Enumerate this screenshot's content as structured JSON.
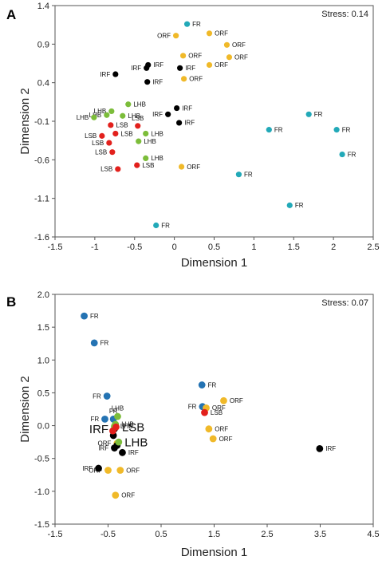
{
  "colors": {
    "FR_A": "#22a9b8",
    "FR_B": "#2473b3",
    "ORF": "#f0b929",
    "IRF": "#000000",
    "LHB": "#7cbd3a",
    "LSB": "#e2201c"
  },
  "chart_data": [
    {
      "type": "scatter",
      "panel_label": "A",
      "annotation": "Stress: 0.14",
      "xlabel": "Dimension 1",
      "ylabel": "Dimension 2",
      "xlim": [
        -1.5,
        2.5
      ],
      "ylim": [
        -1.6,
        1.4
      ],
      "xticks": [
        -1.5,
        -1,
        -0.5,
        0,
        0.5,
        1,
        1.5,
        2,
        2.5
      ],
      "xtick_labels": [
        "-1.5",
        "-1",
        "-0.5",
        "0",
        "0.5",
        "1",
        "1.5",
        "2",
        "2.5"
      ],
      "yticks": [
        1.4,
        0.9,
        0.4,
        -0.1,
        -0.6,
        -1.1,
        -1.6
      ],
      "ytick_labels": [
        "1.4",
        "0.9",
        "0.4",
        "-0.1",
        "-0.6",
        "-1.1",
        "-1.6"
      ],
      "series": [
        {
          "name": "FR",
          "color_key": "FR_A",
          "points": [
            {
              "x": 0.16,
              "y": 1.16,
              "label": "FR",
              "pos": "r"
            },
            {
              "x": 1.69,
              "y": -0.01,
              "label": "FR",
              "pos": "r"
            },
            {
              "x": 1.19,
              "y": -0.21,
              "label": "FR",
              "pos": "r"
            },
            {
              "x": 2.04,
              "y": -0.21,
              "label": "FR",
              "pos": "r"
            },
            {
              "x": 2.11,
              "y": -0.53,
              "label": "FR",
              "pos": "r"
            },
            {
              "x": 0.81,
              "y": -0.79,
              "label": "FR",
              "pos": "r"
            },
            {
              "x": 1.45,
              "y": -1.19,
              "label": "FR",
              "pos": "r"
            },
            {
              "x": -0.23,
              "y": -1.45,
              "label": "FR",
              "pos": "r"
            }
          ]
        },
        {
          "name": "ORF",
          "color_key": "ORF",
          "points": [
            {
              "x": 0.02,
              "y": 1.01,
              "label": "ORF",
              "pos": "l"
            },
            {
              "x": 0.44,
              "y": 1.04,
              "label": "ORF",
              "pos": "r"
            },
            {
              "x": 0.66,
              "y": 0.89,
              "label": "ORF",
              "pos": "r"
            },
            {
              "x": 0.11,
              "y": 0.75,
              "label": "ORF",
              "pos": "r"
            },
            {
              "x": 0.69,
              "y": 0.73,
              "label": "ORF",
              "pos": "r"
            },
            {
              "x": 0.44,
              "y": 0.63,
              "label": "ORF",
              "pos": "r"
            },
            {
              "x": 0.12,
              "y": 0.45,
              "label": "ORF",
              "pos": "r"
            },
            {
              "x": 0.09,
              "y": -0.69,
              "label": "ORF",
              "pos": "r"
            }
          ]
        },
        {
          "name": "IRF",
          "color_key": "IRF",
          "points": [
            {
              "x": -0.33,
              "y": 0.63,
              "label": "IRF",
              "pos": "r"
            },
            {
              "x": -0.35,
              "y": 0.59,
              "label": "IRF",
              "pos": "l"
            },
            {
              "x": 0.07,
              "y": 0.59,
              "label": "IRF",
              "pos": "r"
            },
            {
              "x": -0.74,
              "y": 0.51,
              "label": "IRF",
              "pos": "l"
            },
            {
              "x": -0.34,
              "y": 0.41,
              "label": "IRF",
              "pos": "r"
            },
            {
              "x": 0.03,
              "y": 0.07,
              "label": "IRF",
              "pos": "r"
            },
            {
              "x": -0.08,
              "y": -0.01,
              "label": "IRF",
              "pos": "l"
            },
            {
              "x": 0.06,
              "y": -0.12,
              "label": "IRF",
              "pos": "r"
            }
          ]
        },
        {
          "name": "LHB",
          "color_key": "LHB",
          "points": [
            {
              "x": -0.58,
              "y": 0.12,
              "label": "LHB",
              "pos": "r"
            },
            {
              "x": -0.79,
              "y": 0.03,
              "label": "LHB",
              "pos": "l"
            },
            {
              "x": -0.85,
              "y": -0.02,
              "label": "LHB",
              "pos": "l"
            },
            {
              "x": -0.65,
              "y": -0.03,
              "label": "LHB",
              "pos": "r"
            },
            {
              "x": -1.01,
              "y": -0.05,
              "label": "LHB",
              "pos": "l"
            },
            {
              "x": -0.36,
              "y": -0.26,
              "label": "LHB",
              "pos": "r"
            },
            {
              "x": -0.45,
              "y": -0.36,
              "label": "LHB",
              "pos": "r"
            },
            {
              "x": -0.36,
              "y": -0.58,
              "label": "LHB",
              "pos": "r"
            }
          ]
        },
        {
          "name": "LSB",
          "color_key": "LSB",
          "points": [
            {
              "x": -0.8,
              "y": -0.15,
              "label": "LSB",
              "pos": "r"
            },
            {
              "x": -0.46,
              "y": -0.16,
              "label": "LSB",
              "pos": "t"
            },
            {
              "x": -0.91,
              "y": -0.29,
              "label": "LSB",
              "pos": "l"
            },
            {
              "x": -0.74,
              "y": -0.26,
              "label": "LSB",
              "pos": "r"
            },
            {
              "x": -0.82,
              "y": -0.38,
              "label": "LSB",
              "pos": "l"
            },
            {
              "x": -0.78,
              "y": -0.5,
              "label": "LSB",
              "pos": "l"
            },
            {
              "x": -0.47,
              "y": -0.67,
              "label": "LSB",
              "pos": "r"
            },
            {
              "x": -0.71,
              "y": -0.72,
              "label": "LSB",
              "pos": "l"
            }
          ]
        }
      ]
    },
    {
      "type": "scatter",
      "panel_label": "B",
      "annotation": "Stress: 0.07",
      "xlabel": "Dimension 1",
      "ylabel": "Dimension 2",
      "xlim": [
        -1.5,
        4.5
      ],
      "ylim": [
        -1.5,
        2.0
      ],
      "xticks": [
        -1.5,
        -0.5,
        0.5,
        1.5,
        2.5,
        3.5,
        4.5
      ],
      "xtick_labels": [
        "-1.5",
        "-0.5",
        "0.5",
        "1.5",
        "2.5",
        "3.5",
        "4.5"
      ],
      "yticks": [
        2.0,
        1.5,
        1.0,
        0.5,
        0.0,
        -0.5,
        -1.0,
        -1.5
      ],
      "ytick_labels": [
        "2.0",
        "1.5",
        "1.0",
        "0.5",
        "0.0",
        "-0.5",
        "-1.0",
        "-1.5"
      ],
      "series": [
        {
          "name": "FR",
          "color_key": "FR_B",
          "points": [
            {
              "x": -0.95,
              "y": 1.67,
              "label": "FR",
              "pos": "r"
            },
            {
              "x": -0.76,
              "y": 1.26,
              "label": "FR",
              "pos": "r"
            },
            {
              "x": -0.52,
              "y": 0.45,
              "label": "FR",
              "pos": "l"
            },
            {
              "x": -0.56,
              "y": 0.1,
              "label": "FR",
              "pos": "l"
            },
            {
              "x": -0.4,
              "y": 0.1,
              "label": "FR",
              "pos": "t"
            },
            {
              "x": 1.27,
              "y": 0.62,
              "label": "FR",
              "pos": "r"
            },
            {
              "x": 1.28,
              "y": 0.29,
              "label": "FR",
              "pos": "l"
            }
          ]
        },
        {
          "name": "ORF",
          "color_key": "ORF",
          "points": [
            {
              "x": 1.68,
              "y": 0.38,
              "label": "ORF",
              "pos": "r"
            },
            {
              "x": 1.35,
              "y": 0.27,
              "label": "ORF",
              "pos": "r"
            },
            {
              "x": 1.4,
              "y": -0.05,
              "label": "ORF",
              "pos": "r"
            },
            {
              "x": 1.48,
              "y": -0.2,
              "label": "ORF",
              "pos": "r"
            },
            {
              "x": -0.33,
              "y": -0.27,
              "label": "ORF",
              "pos": "l"
            },
            {
              "x": -0.5,
              "y": -0.68,
              "label": "ORF",
              "pos": "l"
            },
            {
              "x": -0.27,
              "y": -0.68,
              "label": "ORF",
              "pos": "r"
            },
            {
              "x": -0.36,
              "y": -1.06,
              "label": "ORF",
              "pos": "r"
            }
          ]
        },
        {
          "name": "IRF",
          "color_key": "IRF",
          "points": [
            {
              "x": -0.38,
              "y": -0.05,
              "label": "IRF",
              "pos": "l",
              "big": true
            },
            {
              "x": -0.4,
              "y": -0.15,
              "label": "",
              "pos": "r"
            },
            {
              "x": -0.33,
              "y": -0.3,
              "label": "",
              "pos": "r"
            },
            {
              "x": -0.38,
              "y": -0.34,
              "label": "IRF",
              "pos": "l"
            },
            {
              "x": -0.23,
              "y": -0.41,
              "label": "IRF",
              "pos": "r"
            },
            {
              "x": -0.68,
              "y": -0.65,
              "label": "IRF",
              "pos": "l"
            },
            {
              "x": 3.49,
              "y": -0.35,
              "label": "IRF",
              "pos": "r"
            }
          ]
        },
        {
          "name": "LHB",
          "color_key": "LHB",
          "points": [
            {
              "x": -0.32,
              "y": 0.14,
              "label": "LHB",
              "pos": "t"
            },
            {
              "x": -0.36,
              "y": 0.02,
              "label": "LHB",
              "pos": "r"
            },
            {
              "x": -0.38,
              "y": -0.01,
              "label": "LHB",
              "pos": "r"
            },
            {
              "x": -0.3,
              "y": -0.25,
              "label": "LHB",
              "pos": "r",
              "big": true
            }
          ]
        },
        {
          "name": "LSB",
          "color_key": "LSB",
          "points": [
            {
              "x": -0.35,
              "y": -0.02,
              "label": "LSB",
              "pos": "r",
              "big": true
            },
            {
              "x": -0.41,
              "y": -0.08,
              "label": "",
              "pos": "r"
            },
            {
              "x": 1.32,
              "y": 0.2,
              "label": "LSB",
              "pos": "r"
            }
          ]
        }
      ]
    }
  ]
}
